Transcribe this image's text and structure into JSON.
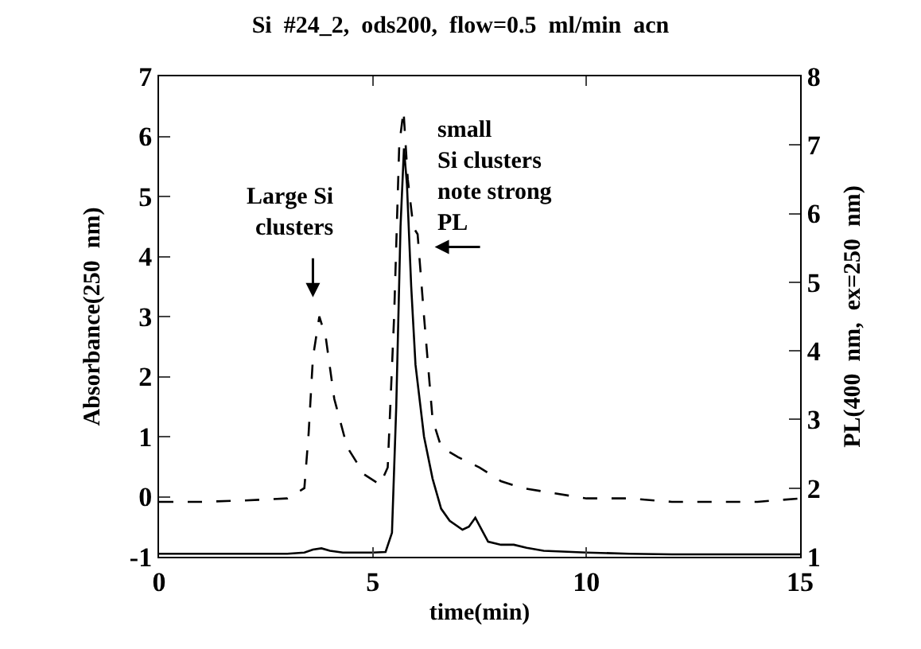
{
  "chart_data": {
    "type": "line",
    "title": "Si  #24_2,  ods200,  flow=0.5  ml/min  acn",
    "xlabel": "time(min)",
    "ylabel": "Absorbance(250  nm)",
    "y2label": "PL(400  nm,  ex=250  nm)",
    "series": [
      {
        "line_style": "solid",
        "color": "#000000",
        "x": [
          0,
          1,
          2,
          3,
          3.4,
          3.6,
          3.8,
          4.0,
          4.3,
          5.0,
          5.3,
          5.45,
          5.55,
          5.65,
          5.73,
          5.8,
          5.9,
          6.0,
          6.2,
          6.4,
          6.6,
          6.8,
          7.1,
          7.25,
          7.4,
          7.55,
          7.7,
          8.0,
          8.3,
          8.6,
          9,
          10,
          11,
          12,
          13,
          14,
          15
        ],
        "values": [
          -0.95,
          -0.95,
          -0.95,
          -0.95,
          -0.93,
          -0.88,
          -0.86,
          -0.9,
          -0.93,
          -0.93,
          -0.92,
          -0.6,
          1.5,
          4.5,
          5.8,
          5.2,
          3.5,
          2.2,
          1.0,
          0.3,
          -0.2,
          -0.4,
          -0.55,
          -0.5,
          -0.35,
          -0.55,
          -0.75,
          -0.8,
          -0.8,
          -0.85,
          -0.9,
          -0.93,
          -0.95,
          -0.96,
          -0.96,
          -0.96,
          -0.96
        ]
      },
      {
        "line_style": "dashed",
        "axis": "y2",
        "color": "#000000",
        "x": [
          0,
          1,
          2,
          3,
          3.4,
          3.5,
          3.6,
          3.75,
          3.9,
          4.1,
          4.4,
          4.8,
          5.17,
          5.35,
          5.5,
          5.62,
          5.72,
          5.82,
          5.95,
          6.05,
          6.2,
          6.4,
          6.6,
          7,
          7.5,
          8,
          8.5,
          9,
          10,
          11,
          12,
          13,
          14,
          15
        ],
        "values": [
          1.8,
          1.8,
          1.82,
          1.85,
          2.0,
          2.8,
          3.9,
          4.5,
          4.2,
          3.3,
          2.6,
          2.2,
          2.05,
          2.3,
          4.5,
          7.0,
          7.5,
          6.5,
          5.8,
          5.7,
          4.5,
          3.0,
          2.6,
          2.45,
          2.3,
          2.1,
          2.0,
          1.95,
          1.85,
          1.85,
          1.8,
          1.8,
          1.8,
          1.85
        ]
      }
    ],
    "xlim": [
      0,
      15
    ],
    "xticks": [
      0,
      5,
      10,
      15
    ],
    "ylim": [
      -1,
      7
    ],
    "yticks": [
      -1,
      0,
      1,
      2,
      3,
      4,
      5,
      6,
      7
    ],
    "y2lim": [
      1,
      8
    ],
    "y2ticks": [
      1,
      2,
      3,
      4,
      5,
      6,
      7,
      8
    ],
    "grid": false,
    "annotations": [
      "Large Si\nclusters",
      "small\nSi clusters\nnote strong\nPL"
    ]
  }
}
